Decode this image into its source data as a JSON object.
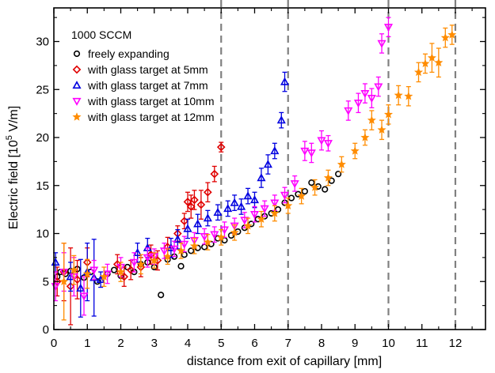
{
  "chart_data": {
    "type": "scatter",
    "xlabel": "distance from exit of capillary [mm]",
    "ylabel_prefix": "Electric field [10",
    "ylabel_exp": "5",
    "ylabel_suffix": " V/m]",
    "xlim": [
      0,
      12.9
    ],
    "ylim": [
      0,
      33.5
    ],
    "xticks": [
      0,
      1,
      2,
      3,
      4,
      5,
      6,
      7,
      8,
      9,
      10,
      11,
      12
    ],
    "yticks": [
      0,
      5,
      10,
      15,
      20,
      25,
      30
    ],
    "grid": false,
    "legend_title": "1000 SCCM",
    "legend_position": "top-left",
    "vlines": [
      5,
      7,
      10,
      12
    ],
    "series": [
      {
        "name": "freely expanding",
        "marker": "circle",
        "color": "#000000",
        "points": [
          [
            0.1,
            5.5,
            0
          ],
          [
            0.2,
            6.0,
            0
          ],
          [
            0.35,
            5.8,
            0
          ],
          [
            0.5,
            6.1,
            0
          ],
          [
            0.7,
            6.3,
            0
          ],
          [
            0.9,
            5.4,
            0
          ],
          [
            1.1,
            6.0,
            0
          ],
          [
            1.3,
            5.0,
            0
          ],
          [
            1.6,
            5.8,
            0
          ],
          [
            1.8,
            6.2,
            0
          ],
          [
            2.0,
            5.6,
            0
          ],
          [
            2.2,
            6.5,
            0
          ],
          [
            2.4,
            6.0,
            0
          ],
          [
            2.6,
            6.8,
            0
          ],
          [
            2.8,
            7.0,
            0
          ],
          [
            3.0,
            6.5,
            0
          ],
          [
            3.2,
            3.6,
            0
          ],
          [
            3.4,
            7.3,
            0
          ],
          [
            3.6,
            7.6,
            0
          ],
          [
            3.8,
            6.6,
            0
          ],
          [
            3.9,
            7.8,
            0
          ],
          [
            4.1,
            8.2,
            0
          ],
          [
            4.3,
            8.5,
            0
          ],
          [
            4.5,
            8.6,
            0
          ],
          [
            4.7,
            8.9,
            0
          ],
          [
            4.9,
            9.5,
            0
          ],
          [
            5.1,
            9.3,
            0
          ],
          [
            5.3,
            9.8,
            0
          ],
          [
            5.5,
            10.2,
            0
          ],
          [
            5.7,
            10.6,
            0
          ],
          [
            5.9,
            11.0,
            0
          ],
          [
            6.1,
            11.5,
            0
          ],
          [
            6.3,
            11.8,
            0
          ],
          [
            6.5,
            12.1,
            0
          ],
          [
            6.7,
            12.5,
            0
          ],
          [
            6.9,
            13.2,
            0
          ],
          [
            7.1,
            13.7,
            0
          ],
          [
            7.3,
            14.1,
            0
          ],
          [
            7.5,
            14.4,
            0
          ],
          [
            7.7,
            15.3,
            0
          ],
          [
            7.9,
            14.9,
            0
          ],
          [
            8.1,
            14.6,
            0
          ],
          [
            8.3,
            15.5,
            0
          ],
          [
            8.5,
            16.2,
            0
          ]
        ]
      },
      {
        "name": "with glass target at 5mm",
        "marker": "diamond",
        "color": "#e00000",
        "points": [
          [
            0.1,
            5.0,
            1.5
          ],
          [
            0.3,
            6.0,
            3.0
          ],
          [
            0.5,
            4.5,
            4.0
          ],
          [
            0.7,
            5.2,
            2.0
          ],
          [
            1.0,
            7.0,
            1.5
          ],
          [
            1.9,
            6.8,
            1.0
          ],
          [
            2.1,
            5.5,
            1.0
          ],
          [
            2.3,
            6.2,
            1.0
          ],
          [
            2.6,
            6.5,
            1.0
          ],
          [
            2.9,
            7.8,
            1.0
          ],
          [
            3.1,
            7.2,
            1.0
          ],
          [
            3.4,
            8.6,
            1.0
          ],
          [
            3.7,
            10.0,
            0.8
          ],
          [
            3.9,
            11.3,
            0.8
          ],
          [
            4.0,
            13.3,
            1.0
          ],
          [
            4.1,
            12.8,
            1.2
          ],
          [
            4.2,
            13.5,
            1.0
          ],
          [
            4.4,
            13.0,
            1.5
          ],
          [
            4.6,
            14.3,
            1.0
          ],
          [
            4.8,
            16.2,
            0.8
          ],
          [
            5.0,
            19.0,
            0.5
          ]
        ]
      },
      {
        "name": "with glass target at 7mm",
        "marker": "triangle-up",
        "color": "#0000e0",
        "points": [
          [
            0.05,
            7.0,
            1.0
          ],
          [
            0.5,
            5.5,
            1.5
          ],
          [
            0.8,
            4.3,
            3.0
          ],
          [
            1.0,
            6.0,
            3.0
          ],
          [
            1.2,
            5.4,
            4.0
          ],
          [
            1.4,
            5.2,
            0.8
          ],
          [
            2.5,
            8.0,
            1.0
          ],
          [
            2.8,
            8.5,
            1.0
          ],
          [
            3.5,
            8.5,
            1.0
          ],
          [
            3.7,
            9.4,
            1.0
          ],
          [
            4.0,
            10.5,
            1.0
          ],
          [
            4.3,
            11.0,
            1.0
          ],
          [
            4.6,
            11.6,
            0.8
          ],
          [
            4.9,
            12.2,
            0.8
          ],
          [
            5.2,
            12.6,
            0.8
          ],
          [
            5.4,
            13.2,
            0.8
          ],
          [
            5.6,
            12.8,
            0.8
          ],
          [
            5.8,
            13.9,
            0.8
          ],
          [
            6.0,
            13.5,
            0.8
          ],
          [
            6.2,
            15.8,
            1.0
          ],
          [
            6.4,
            17.2,
            1.0
          ],
          [
            6.6,
            18.6,
            0.8
          ],
          [
            6.8,
            21.8,
            0.8
          ],
          [
            6.9,
            25.8,
            1.0
          ]
        ]
      },
      {
        "name": "with glass target at 10mm",
        "marker": "triangle-down",
        "color": "#ff00ff",
        "points": [
          [
            0.05,
            4.5,
            1.5
          ],
          [
            0.3,
            6.0,
            2.0
          ],
          [
            0.6,
            5.5,
            2.0
          ],
          [
            0.9,
            3.5,
            2.0
          ],
          [
            1.2,
            6.2,
            1.0
          ],
          [
            1.6,
            5.8,
            1.0
          ],
          [
            2.0,
            6.5,
            1.0
          ],
          [
            2.4,
            7.0,
            1.0
          ],
          [
            2.8,
            7.5,
            1.0
          ],
          [
            3.0,
            7.6,
            0.8
          ],
          [
            3.3,
            8.2,
            0.8
          ],
          [
            3.6,
            8.4,
            0.8
          ],
          [
            3.9,
            8.9,
            0.8
          ],
          [
            4.2,
            9.3,
            0.8
          ],
          [
            4.5,
            9.7,
            0.8
          ],
          [
            4.8,
            9.9,
            0.8
          ],
          [
            5.1,
            10.4,
            0.8
          ],
          [
            5.4,
            10.8,
            0.8
          ],
          [
            5.7,
            11.4,
            0.8
          ],
          [
            6.0,
            12.0,
            0.8
          ],
          [
            6.3,
            12.6,
            0.8
          ],
          [
            6.6,
            13.2,
            0.8
          ],
          [
            6.9,
            14.0,
            0.8
          ],
          [
            7.2,
            15.2,
            0.8
          ],
          [
            7.5,
            18.6,
            1.0
          ],
          [
            7.7,
            18.4,
            1.0
          ],
          [
            8.0,
            19.7,
            1.0
          ],
          [
            8.2,
            19.4,
            0.8
          ],
          [
            8.8,
            22.8,
            1.0
          ],
          [
            9.1,
            23.6,
            1.0
          ],
          [
            9.3,
            24.6,
            1.0
          ],
          [
            9.5,
            24.1,
            1.0
          ],
          [
            9.7,
            25.3,
            1.0
          ],
          [
            9.8,
            29.8,
            1.0
          ],
          [
            10.0,
            31.5,
            1.0
          ]
        ]
      },
      {
        "name": "with glass target at 12mm",
        "marker": "star",
        "color": "#ff8c00",
        "points": [
          [
            0.3,
            5.0,
            4.0
          ],
          [
            0.6,
            6.2,
            1.5
          ],
          [
            1.0,
            5.8,
            1.5
          ],
          [
            1.5,
            5.5,
            1.0
          ],
          [
            2.0,
            6.0,
            1.0
          ],
          [
            2.6,
            6.8,
            1.0
          ],
          [
            3.0,
            7.2,
            0.8
          ],
          [
            3.4,
            7.6,
            0.8
          ],
          [
            3.8,
            8.2,
            0.8
          ],
          [
            4.2,
            8.7,
            0.8
          ],
          [
            4.6,
            9.1,
            0.8
          ],
          [
            5.0,
            9.6,
            0.8
          ],
          [
            5.4,
            10.1,
            0.8
          ],
          [
            5.8,
            10.8,
            0.8
          ],
          [
            6.2,
            11.5,
            0.8
          ],
          [
            6.6,
            12.1,
            0.8
          ],
          [
            7.0,
            12.9,
            0.8
          ],
          [
            7.4,
            13.9,
            0.8
          ],
          [
            7.8,
            14.8,
            0.8
          ],
          [
            8.2,
            15.8,
            0.8
          ],
          [
            8.6,
            17.2,
            0.8
          ],
          [
            9.0,
            18.6,
            0.8
          ],
          [
            9.3,
            20.0,
            0.8
          ],
          [
            9.5,
            21.8,
            1.0
          ],
          [
            9.8,
            20.8,
            1.0
          ],
          [
            10.0,
            22.4,
            1.0
          ],
          [
            10.3,
            24.4,
            1.0
          ],
          [
            10.6,
            24.3,
            1.0
          ],
          [
            10.9,
            26.8,
            1.0
          ],
          [
            11.1,
            27.7,
            1.0
          ],
          [
            11.3,
            28.3,
            1.5
          ],
          [
            11.5,
            27.8,
            1.5
          ],
          [
            11.7,
            30.4,
            1.0
          ],
          [
            11.9,
            30.7,
            1.0
          ]
        ]
      }
    ]
  }
}
